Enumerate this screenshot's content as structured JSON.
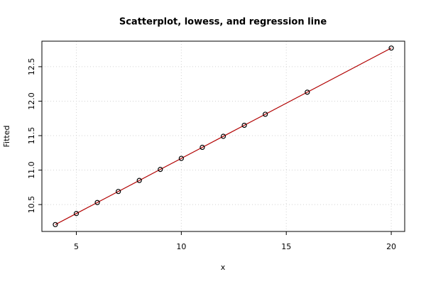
{
  "chart_data": {
    "type": "scatter",
    "title": "Scatterplot, lowess, and regression line",
    "x_label": "x",
    "y_label": "Fitted",
    "x": [
      4,
      5,
      6,
      7,
      8,
      9,
      10,
      11,
      12,
      13,
      14,
      16,
      20
    ],
    "series": [
      {
        "color": "#000000",
        "line_colors": [
          "#000000",
          "#cc0000"
        ],
        "values": [
          10.21,
          10.37,
          10.53,
          10.69,
          10.85,
          11.01,
          11.17,
          11.33,
          11.49,
          11.65,
          11.81,
          12.13,
          12.77
        ]
      }
    ],
    "xlim": [
      3.36,
      20.64
    ],
    "ylim": [
      10.11,
      12.87
    ],
    "xticks": [
      5,
      10,
      15,
      20
    ],
    "yticks": [
      10.5,
      {
        "value": 11,
        "label": "11.0"
      },
      11.5,
      {
        "value": 12,
        "label": "12.0"
      },
      12.5
    ],
    "grid": true
  }
}
